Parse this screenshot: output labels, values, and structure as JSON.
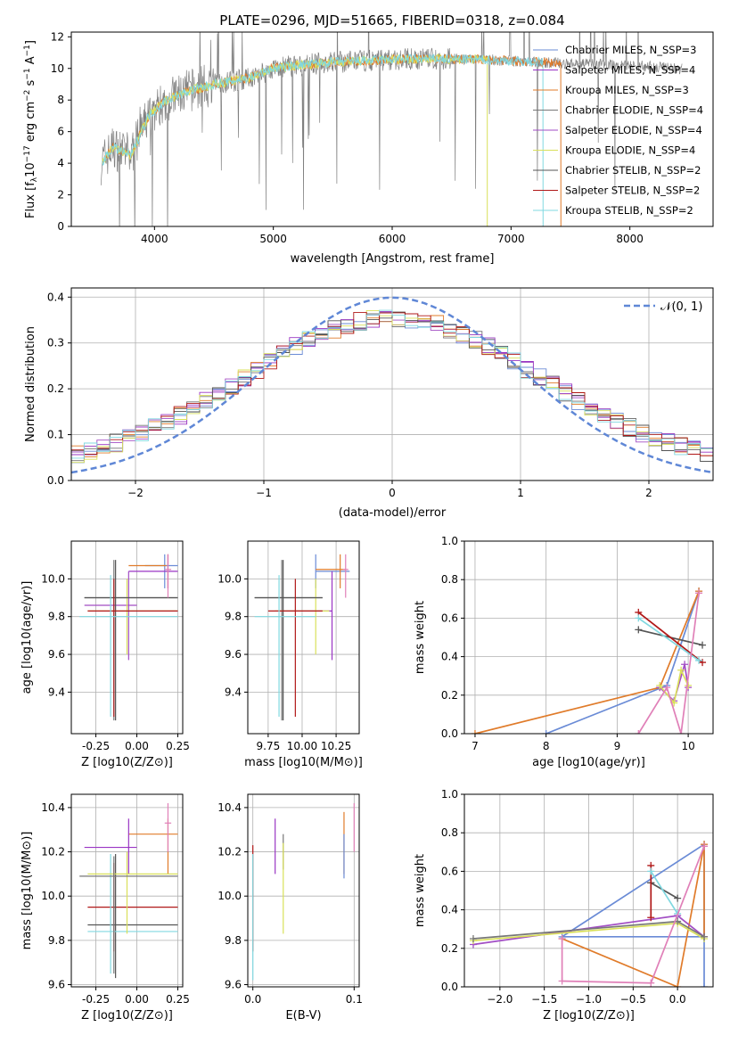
{
  "figure_title": "PLATE=0296, MJD=51665, FIBERID=0318, z=0.084",
  "colors": {
    "Chabrier MILES": "#6a8bd6",
    "Salpeter MILES": "#9a35c4",
    "Kroupa MILES": "#e07b2a",
    "Chabrier ELODIE": "#777777",
    "Salpeter ELODIE": "#a24ec4",
    "Kroupa ELODIE": "#d9e05a",
    "Chabrier STELIB": "#555555",
    "Salpeter STELIB": "#b01818",
    "Kroupa STELIB": "#80d8e0",
    "pink": "#e080b8",
    "spectrum": "#808080",
    "gauss": "#5f87d6"
  },
  "chart_data": [
    {
      "type": "line",
      "panel": "spectrum",
      "xlabel": "wavelength [Angstrom, rest frame]",
      "ylabel": "Flux [f_λ10^{-17} erg cm^{-2} s^{-1} A^{-1}]",
      "xlim": [
        3300,
        8700
      ],
      "ylim": [
        0,
        12.3
      ],
      "xticks": [
        4000,
        5000,
        6000,
        7000,
        8000
      ],
      "yticks": [
        0,
        2,
        4,
        6,
        8,
        10,
        12
      ],
      "legend": {
        "placement": "right",
        "entries": [
          {
            "label": "Chabrier MILES, N_SSP=3",
            "color_key": "Chabrier MILES"
          },
          {
            "label": "Salpeter MILES, N_SSP=4",
            "color_key": "Salpeter MILES"
          },
          {
            "label": "Kroupa MILES, N_SSP=3",
            "color_key": "Kroupa MILES"
          },
          {
            "label": "Chabrier ELODIE, N_SSP=4",
            "color_key": "Chabrier ELODIE"
          },
          {
            "label": "Salpeter ELODIE, N_SSP=4",
            "color_key": "Salpeter ELODIE"
          },
          {
            "label": "Kroupa ELODIE, N_SSP=4",
            "color_key": "Kroupa ELODIE"
          },
          {
            "label": "Chabrier STELIB, N_SSP=2",
            "color_key": "Chabrier STELIB"
          },
          {
            "label": "Salpeter STELIB, N_SSP=2",
            "color_key": "Salpeter STELIB"
          },
          {
            "label": "Kroupa STELIB, N_SSP=2",
            "color_key": "Kroupa STELIB"
          }
        ]
      },
      "continuum": {
        "x": [
          3550,
          3650,
          3800,
          3950,
          4100,
          4300,
          4500,
          4800,
          5000,
          5200,
          5500,
          5800,
          6100,
          6400,
          6800,
          7200,
          7600,
          8000,
          8400,
          8700
        ],
        "y": [
          4.0,
          5.0,
          4.5,
          7.0,
          8.0,
          8.6,
          9.0,
          9.4,
          10.0,
          10.2,
          10.4,
          10.5,
          10.6,
          10.6,
          10.55,
          10.4,
          10.3,
          10.2,
          10.0,
          9.9
        ]
      }
    },
    {
      "type": "line",
      "panel": "residuals",
      "xlabel": "(data-model)/error",
      "ylabel": "Normed distribution",
      "xlim": [
        -2.5,
        2.5
      ],
      "ylim": [
        0,
        0.42
      ],
      "xticks": [
        -2,
        -1,
        0,
        1,
        2
      ],
      "yticks": [
        0.0,
        0.1,
        0.2,
        0.3,
        0.4
      ],
      "grid": true,
      "legend": {
        "placement": "top-right",
        "entries": [
          {
            "label": "𝒩(0, 1)"
          }
        ]
      },
      "series_keys": [
        "Chabrier MILES",
        "Salpeter MILES",
        "Kroupa MILES",
        "Chabrier ELODIE",
        "Salpeter ELODIE",
        "Kroupa ELODIE",
        "Chabrier STELIB",
        "Salpeter STELIB",
        "Kroupa STELIB"
      ]
    },
    {
      "type": "scatter",
      "panel": "age-Z",
      "xlabel": "Z [log10(Z/Z⊙)]",
      "ylabel": "age  [log10(age/yr)]",
      "xlim": [
        -0.4,
        0.28
      ],
      "ylim": [
        9.18,
        10.2
      ],
      "xticks": [
        "-0.25",
        "0.00",
        "0.25"
      ],
      "yticks": [
        "9.4",
        "9.6",
        "9.8",
        "10.0"
      ],
      "grid": true,
      "points": [
        {
          "c": "Chabrier MILES",
          "x": 0.17,
          "y": 10.07,
          "xe": [
            0.05,
            0.25
          ],
          "ye": [
            9.95,
            10.13
          ]
        },
        {
          "c": "Salpeter MILES",
          "x": 0.19,
          "y": 10.04,
          "xe": [
            -0.05,
            0.25
          ],
          "ye": [
            9.95,
            10.13
          ]
        },
        {
          "c": "Kroupa MILES",
          "x": 0.19,
          "y": 10.07,
          "xe": [
            -0.05,
            0.18
          ],
          "ye": [
            9.95,
            10.13
          ]
        },
        {
          "c": "Chabrier ELODIE",
          "x": -0.14,
          "y": 9.9,
          "xe": [
            -0.32,
            0.25
          ],
          "ye": [
            9.25,
            10.1
          ]
        },
        {
          "c": "Salpeter ELODIE",
          "x": -0.05,
          "y": 9.86,
          "xe": [
            -0.32,
            0.0
          ],
          "ye": [
            9.57,
            10.04
          ]
        },
        {
          "c": "Kroupa ELODIE",
          "x": -0.06,
          "y": 9.83,
          "xe": [
            -0.3,
            0.25
          ],
          "ye": [
            9.6,
            10.0
          ]
        },
        {
          "c": "Chabrier STELIB",
          "x": -0.13,
          "y": 9.9,
          "xe": [
            -0.32,
            0.25
          ],
          "ye": [
            9.25,
            10.1
          ]
        },
        {
          "c": "Salpeter STELIB",
          "x": -0.14,
          "y": 9.83,
          "xe": [
            -0.3,
            0.25
          ],
          "ye": [
            9.27,
            10.0
          ]
        },
        {
          "c": "Kroupa STELIB",
          "x": -0.16,
          "y": 9.8,
          "xe": [
            -0.35,
            0.25
          ],
          "ye": [
            9.27,
            10.02
          ]
        },
        {
          "c": "pink",
          "x": 0.19,
          "y": 10.05,
          "xe": [
            0.17,
            0.21
          ],
          "ye": [
            9.9,
            10.13
          ]
        }
      ]
    },
    {
      "type": "scatter",
      "panel": "age-mass",
      "xlabel": "mass [log10(M/M⊙)]",
      "ylabel": "",
      "xlim": [
        9.6,
        10.42
      ],
      "ylim": [
        9.18,
        10.2
      ],
      "xticks": [
        "9.75",
        "10.00",
        "10.25"
      ],
      "yticks": [
        "9.4",
        "9.6",
        "9.8",
        "10.0"
      ],
      "grid": true,
      "points": [
        {
          "c": "Chabrier MILES",
          "x": 10.1,
          "y": 10.04,
          "xe": [
            10.1,
            10.35
          ],
          "ye": [
            9.95,
            10.13
          ]
        },
        {
          "c": "Salpeter MILES",
          "x": 10.22,
          "y": 9.83,
          "xe": [
            9.85,
            10.22
          ],
          "ye": [
            9.57,
            10.04
          ]
        },
        {
          "c": "Kroupa MILES",
          "x": 10.28,
          "y": 10.05,
          "xe": [
            10.1,
            10.32
          ],
          "ye": [
            9.95,
            10.13
          ]
        },
        {
          "c": "Chabrier ELODIE",
          "x": 9.85,
          "y": 9.9,
          "xe": [
            9.65,
            10.15
          ],
          "ye": [
            9.25,
            10.1
          ]
        },
        {
          "c": "Kroupa ELODIE",
          "x": 10.1,
          "y": 9.83,
          "xe": [
            9.8,
            10.2
          ],
          "ye": [
            9.6,
            10.0
          ]
        },
        {
          "c": "Chabrier STELIB",
          "x": 9.86,
          "y": 9.9,
          "xe": [
            9.65,
            10.15
          ],
          "ye": [
            9.25,
            10.1
          ]
        },
        {
          "c": "Salpeter STELIB",
          "x": 9.95,
          "y": 9.83,
          "xe": [
            9.75,
            10.15
          ],
          "ye": [
            9.27,
            10.0
          ]
        },
        {
          "c": "Kroupa STELIB",
          "x": 9.83,
          "y": 9.8,
          "xe": [
            9.65,
            10.1
          ],
          "ye": [
            9.27,
            10.02
          ]
        },
        {
          "c": "pink",
          "x": 10.32,
          "y": 10.05,
          "xe": [
            10.3,
            10.34
          ],
          "ye": [
            9.9,
            10.13
          ]
        }
      ]
    },
    {
      "type": "line",
      "panel": "weight-age",
      "xlabel": "age  [log10(age/yr)]",
      "ylabel": "mass weight",
      "xlim": [
        6.85,
        10.35
      ],
      "ylim": [
        0,
        1.0
      ],
      "xticks": [
        "7",
        "8",
        "9",
        "10"
      ],
      "yticks": [
        "0.0",
        "0.2",
        "0.4",
        "0.6",
        "0.8",
        "1.0"
      ],
      "grid": true,
      "series": [
        {
          "c": "Chabrier MILES",
          "x": [
            8.0,
            9.7,
            10.15
          ],
          "y": [
            0.0,
            0.25,
            0.74
          ]
        },
        {
          "c": "Kroupa MILES",
          "x": [
            7.0,
            9.6,
            10.15
          ],
          "y": [
            0.0,
            0.24,
            0.74
          ]
        },
        {
          "c": "Salpeter ELODIE",
          "x": [
            9.6,
            9.8,
            9.95,
            10.0
          ],
          "y": [
            0.24,
            0.17,
            0.36,
            0.24
          ]
        },
        {
          "c": "Kroupa ELODIE",
          "x": [
            9.6,
            9.8,
            9.9,
            10.0
          ],
          "y": [
            0.25,
            0.16,
            0.33,
            0.25
          ]
        },
        {
          "c": "Chabrier STELIB",
          "x": [
            9.3,
            10.2
          ],
          "y": [
            0.54,
            0.46
          ]
        },
        {
          "c": "Salpeter STELIB",
          "x": [
            9.3,
            10.2
          ],
          "y": [
            0.63,
            0.37
          ]
        },
        {
          "c": "Kroupa STELIB",
          "x": [
            9.3,
            10.15
          ],
          "y": [
            0.6,
            0.38
          ]
        },
        {
          "c": "pink",
          "x": [
            9.3,
            9.7,
            9.9,
            10.15
          ],
          "y": [
            0.0,
            0.24,
            0.0,
            0.73
          ]
        }
      ]
    },
    {
      "type": "scatter",
      "panel": "mass-Z",
      "xlabel": "Z [log10(Z/Z⊙)]",
      "ylabel": "mass [log10(M/M⊙)]",
      "xlim": [
        -0.4,
        0.28
      ],
      "ylim": [
        9.59,
        10.46
      ],
      "xticks": [
        "-0.25",
        "0.00",
        "0.25"
      ],
      "yticks": [
        "9.6",
        "9.8",
        "10.0",
        "10.2",
        "10.4"
      ],
      "grid": true,
      "points": [
        {
          "c": "Kroupa MILES",
          "x": 0.19,
          "y": 10.28,
          "xe": [
            -0.05,
            0.25
          ],
          "ye": [
            10.1,
            10.35
          ]
        },
        {
          "c": "Salpeter MILES",
          "x": -0.05,
          "y": 10.22,
          "xe": [
            -0.32,
            0.0
          ],
          "ye": [
            10.1,
            10.35
          ]
        },
        {
          "c": "Salpeter STELIB",
          "x": -0.14,
          "y": 9.95,
          "xe": [
            -0.3,
            0.25
          ],
          "ye": [
            9.75,
            10.15
          ]
        },
        {
          "c": "Chabrier STELIB",
          "x": -0.13,
          "y": 9.87,
          "xe": [
            -0.3,
            0.25
          ],
          "ye": [
            9.63,
            10.19
          ]
        },
        {
          "c": "Kroupa STELIB",
          "x": -0.16,
          "y": 9.84,
          "xe": [
            -0.3,
            0.25
          ],
          "ye": [
            9.65,
            10.19
          ]
        },
        {
          "c": "Kroupa ELODIE",
          "x": -0.06,
          "y": 10.1,
          "xe": [
            -0.3,
            0.25
          ],
          "ye": [
            9.83,
            10.2
          ]
        },
        {
          "c": "Chabrier ELODIE",
          "x": -0.14,
          "y": 10.09,
          "xe": [
            -0.35,
            0.25
          ],
          "ye": [
            9.65,
            10.18
          ]
        },
        {
          "c": "pink",
          "x": 0.19,
          "y": 10.33,
          "xe": [
            0.17,
            0.21
          ],
          "ye": [
            10.2,
            10.42
          ]
        }
      ]
    },
    {
      "type": "scatter",
      "panel": "mass-EBV",
      "xlabel": "E(B-V)",
      "ylabel": "",
      "xlim": [
        -0.005,
        0.105
      ],
      "ylim": [
        9.59,
        10.46
      ],
      "xticks": [
        "0.0",
        "0.1"
      ],
      "yticks": [
        "9.6",
        "9.8",
        "10.0",
        "10.2",
        "10.4"
      ],
      "grid": true,
      "points": [
        {
          "c": "Salpeter STELIB",
          "x": 0.0,
          "y": 10.2,
          "ye": [
            9.75,
            10.23
          ]
        },
        {
          "c": "Kroupa STELIB",
          "x": 0.0,
          "y": 9.9,
          "ye": [
            9.62,
            10.19
          ]
        },
        {
          "c": "Salpeter MILES",
          "x": 0.022,
          "y": 10.22,
          "ye": [
            10.1,
            10.35
          ]
        },
        {
          "c": "Chabrier ELODIE",
          "x": 0.03,
          "y": 10.2,
          "ye": [
            10.12,
            10.28
          ]
        },
        {
          "c": "Kroupa ELODIE",
          "x": 0.03,
          "y": 10.05,
          "ye": [
            9.83,
            10.24
          ]
        },
        {
          "c": "Kroupa MILES",
          "x": 0.09,
          "y": 10.22,
          "ye": [
            10.1,
            10.38
          ]
        },
        {
          "c": "Chabrier MILES",
          "x": 0.09,
          "y": 10.2,
          "ye": [
            10.08,
            10.28
          ]
        },
        {
          "c": "pink",
          "x": 0.1,
          "y": 10.3,
          "ye": [
            10.2,
            10.42
          ]
        }
      ]
    },
    {
      "type": "line",
      "panel": "weight-Z",
      "xlabel": "Z [log10(Z/Z⊙)]",
      "ylabel": "mass weight",
      "xlim": [
        -2.4,
        0.4
      ],
      "ylim": [
        0,
        1.0
      ],
      "xticks": [
        "−2.0",
        "−1.5",
        "−1.0",
        "−0.5",
        "0.0"
      ],
      "yticks": [
        "0.0",
        "0.2",
        "0.4",
        "0.6",
        "0.8",
        "1.0"
      ],
      "grid": true,
      "series": [
        {
          "c": "Chabrier MILES",
          "x": [
            0.3,
            0.3,
            -1.3,
            0.3
          ],
          "y": [
            0.0,
            0.74,
            0.26,
            0.26
          ]
        },
        {
          "c": "Kroupa MILES",
          "x": [
            -1.3,
            0.0,
            0.3,
            0.3
          ],
          "y": [
            0.25,
            0.0,
            0.74,
            0.26
          ]
        },
        {
          "c": "Salpeter ELODIE",
          "x": [
            -2.3,
            0.0,
            0.3
          ],
          "y": [
            0.22,
            0.37,
            0.26
          ]
        },
        {
          "c": "Kroupa ELODIE",
          "x": [
            -2.3,
            0.0,
            0.3
          ],
          "y": [
            0.24,
            0.33,
            0.25
          ]
        },
        {
          "c": "Chabrier ELODIE",
          "x": [
            -2.3,
            0.0,
            0.3
          ],
          "y": [
            0.25,
            0.34,
            0.26
          ]
        },
        {
          "c": "Chabrier STELIB",
          "x": [
            -0.3,
            -0.3,
            0.0
          ],
          "y": [
            0.54,
            0.54,
            0.46
          ]
        },
        {
          "c": "Salpeter STELIB",
          "x": [
            -0.3,
            -0.3
          ],
          "y": [
            0.36,
            0.63
          ]
        },
        {
          "c": "Kroupa STELIB",
          "x": [
            -0.3,
            0.0
          ],
          "y": [
            0.6,
            0.38
          ]
        },
        {
          "c": "pink",
          "x": [
            -1.3,
            -1.3,
            -0.3,
            0.3
          ],
          "y": [
            0.25,
            0.03,
            0.02,
            0.73
          ]
        }
      ]
    }
  ]
}
